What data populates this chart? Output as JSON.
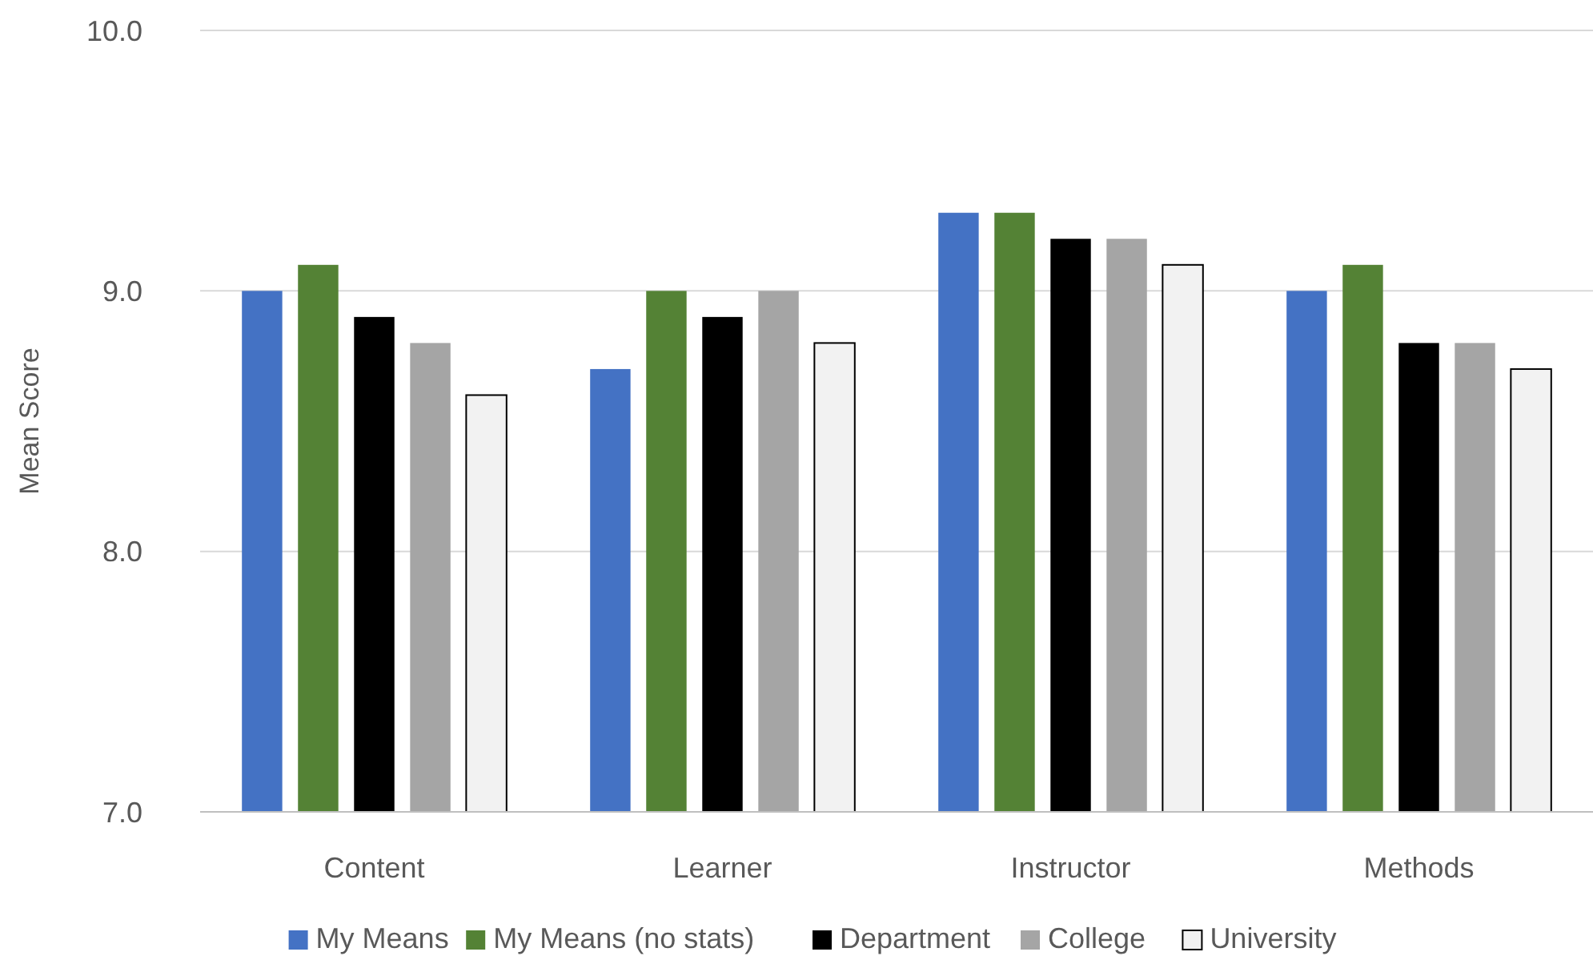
{
  "chart_data": {
    "type": "bar",
    "ylabel": "Mean Score",
    "categories": [
      "Content",
      "Learner",
      "Instructor",
      "Methods"
    ],
    "series": [
      {
        "name": "My Means",
        "color": "#4472c4",
        "values": [
          9.0,
          8.7,
          9.3,
          9.0
        ]
      },
      {
        "name": "My Means (no stats)",
        "color": "#548235",
        "values": [
          9.1,
          9.0,
          9.3,
          9.1
        ]
      },
      {
        "name": "Department",
        "color": "#000000",
        "values": [
          8.9,
          8.9,
          9.2,
          8.8
        ]
      },
      {
        "name": "College",
        "color": "#a5a5a5",
        "values": [
          8.8,
          9.0,
          9.2,
          8.8
        ]
      },
      {
        "name": "University",
        "color": "#f2f2f2",
        "values": [
          8.6,
          8.8,
          9.1,
          8.7
        ]
      }
    ],
    "ylim": [
      7,
      10
    ],
    "yticks": [
      {
        "value": 7,
        "label": "7.0"
      },
      {
        "value": 8,
        "label": "8.0"
      },
      {
        "value": 9,
        "label": "9.0"
      },
      {
        "value": 10,
        "label": "10.0"
      }
    ],
    "grid": "y",
    "legend": "bottom"
  }
}
